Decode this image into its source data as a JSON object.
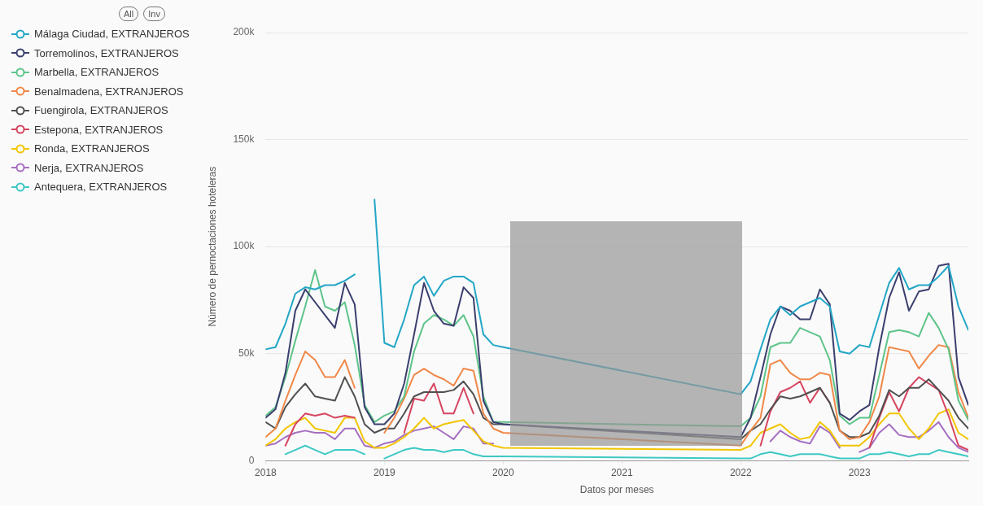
{
  "chart_data": {
    "type": "line",
    "xlabel": "Datos por meses",
    "ylabel": "Número de pernoctaciones hoteleras",
    "annotations": [
      "All",
      "Inv"
    ],
    "x": [
      "2018-01",
      "2018-02",
      "2018-03",
      "2018-04",
      "2018-05",
      "2018-06",
      "2018-07",
      "2018-08",
      "2018-09",
      "2018-10",
      "2018-11",
      "2018-12",
      "2019-01",
      "2019-02",
      "2019-03",
      "2019-04",
      "2019-05",
      "2019-06",
      "2019-07",
      "2019-08",
      "2019-09",
      "2019-10",
      "2019-11",
      "2019-12",
      "2020-01",
      "2022-01",
      "2022-02",
      "2022-03",
      "2022-04",
      "2022-05",
      "2022-06",
      "2022-07",
      "2022-08",
      "2022-09",
      "2022-10",
      "2022-11",
      "2022-12",
      "2023-01",
      "2023-02",
      "2023-03",
      "2023-04",
      "2023-05",
      "2023-06",
      "2023-07",
      "2023-08",
      "2023-09",
      "2023-10",
      "2023-11",
      "2023-12"
    ],
    "series": [
      {
        "name": "Málaga Ciudad, EXTRANJEROS",
        "color": "#23a6c6",
        "values": [
          52000,
          53000,
          64000,
          78000,
          81000,
          80000,
          82000,
          82000,
          84000,
          87000,
          null,
          122000,
          55000,
          53000,
          66000,
          82000,
          86000,
          77000,
          84000,
          86000,
          86000,
          83000,
          59000,
          54000,
          53000,
          31000,
          37000,
          52000,
          66000,
          72000,
          68000,
          72000,
          74000,
          76000,
          72000,
          51000,
          50000,
          54000,
          53000,
          68000,
          83000,
          90000,
          80000,
          82000,
          82000,
          86000,
          91000,
          72000,
          61000
        ]
      },
      {
        "name": "Torremolinos, EXTRANJEROS",
        "color": "#3b3f6e",
        "values": [
          20000,
          24000,
          41000,
          70000,
          80000,
          74000,
          68000,
          62000,
          83000,
          73000,
          25000,
          17000,
          17000,
          22000,
          36000,
          59000,
          83000,
          70000,
          64000,
          63000,
          81000,
          76000,
          28000,
          18000,
          17000,
          11000,
          20000,
          39000,
          59000,
          72000,
          70000,
          66000,
          66000,
          80000,
          73000,
          22000,
          19000,
          23000,
          26000,
          53000,
          76000,
          88000,
          70000,
          79000,
          80000,
          91000,
          92000,
          39000,
          26000
        ]
      },
      {
        "name": "Marbella, EXTRANJEROS",
        "color": "#5ec48a",
        "values": [
          21000,
          25000,
          39000,
          56000,
          72000,
          89000,
          72000,
          70000,
          74000,
          54000,
          26000,
          18000,
          21000,
          23000,
          30000,
          51000,
          64000,
          68000,
          66000,
          63000,
          68000,
          58000,
          30000,
          18000,
          18000,
          16000,
          20000,
          30000,
          53000,
          55000,
          55000,
          62000,
          60000,
          58000,
          47000,
          21000,
          17000,
          20000,
          20000,
          40000,
          60000,
          61000,
          60000,
          58000,
          69000,
          62000,
          52000,
          28000,
          19000
        ]
      },
      {
        "name": "Benalmadena, EXTRANJEROS",
        "color": "#f08848",
        "values": [
          11000,
          15000,
          28000,
          40000,
          51000,
          47000,
          39000,
          39000,
          47000,
          34000,
          null,
          null,
          13000,
          20000,
          29000,
          40000,
          43000,
          40000,
          38000,
          35000,
          43000,
          42000,
          22000,
          15000,
          13000,
          7000,
          14000,
          20000,
          45000,
          47000,
          41000,
          38000,
          38000,
          41000,
          40000,
          14000,
          10000,
          11000,
          18000,
          30000,
          53000,
          52000,
          51000,
          43000,
          49000,
          54000,
          53000,
          32000,
          20000
        ]
      },
      {
        "name": "Fuengirola, EXTRANJEROS",
        "color": "#505050",
        "values": [
          18000,
          15000,
          25000,
          31000,
          36000,
          30000,
          29000,
          28000,
          39000,
          30000,
          17000,
          13000,
          15000,
          15000,
          22000,
          30000,
          32000,
          32000,
          32000,
          33000,
          37000,
          31000,
          20000,
          17000,
          17000,
          10000,
          14000,
          17000,
          24000,
          30000,
          29000,
          30000,
          32000,
          34000,
          27000,
          14000,
          11000,
          11000,
          13000,
          21000,
          33000,
          30000,
          34000,
          34000,
          38000,
          33000,
          28000,
          20000,
          15000
        ]
      },
      {
        "name": "Estepona, EXTRANJEROS",
        "color": "#d6455f",
        "values": [
          null,
          null,
          7000,
          17000,
          22000,
          21000,
          22000,
          20000,
          21000,
          20000,
          null,
          null,
          null,
          null,
          13000,
          29000,
          28000,
          36000,
          22000,
          22000,
          34000,
          22000,
          null,
          null,
          null,
          null,
          null,
          7000,
          23000,
          32000,
          34000,
          37000,
          27000,
          34000,
          27000,
          null,
          null,
          null,
          6000,
          20000,
          32000,
          23000,
          34000,
          39000,
          36000,
          33000,
          21000,
          7000,
          5000
        ]
      },
      {
        "name": "Ronda, EXTRANJEROS",
        "color": "#f2c500",
        "values": [
          7000,
          10000,
          15000,
          18000,
          20000,
          15000,
          14000,
          13000,
          20000,
          20000,
          9000,
          6000,
          6000,
          8000,
          11000,
          15000,
          20000,
          15000,
          17000,
          18000,
          19000,
          14000,
          9000,
          7000,
          6000,
          5000,
          7000,
          13000,
          15000,
          17000,
          13000,
          10000,
          11000,
          18000,
          14000,
          7000,
          7000,
          7000,
          11000,
          17000,
          22000,
          22000,
          15000,
          10000,
          15000,
          22000,
          24000,
          13000,
          10000
        ]
      },
      {
        "name": "Nerja, EXTRANJEROS",
        "color": "#a66fc2",
        "values": [
          7000,
          8000,
          11000,
          13000,
          14000,
          13000,
          13000,
          10000,
          15000,
          15000,
          7000,
          6000,
          8000,
          9000,
          12000,
          14000,
          15000,
          16000,
          13000,
          10000,
          16000,
          15000,
          8000,
          8000,
          null,
          null,
          null,
          null,
          9000,
          14000,
          11000,
          9000,
          8000,
          16000,
          13000,
          6000,
          null,
          4000,
          6000,
          13000,
          17000,
          12000,
          11000,
          11000,
          14000,
          18000,
          11000,
          6000,
          4000
        ]
      },
      {
        "name": "Antequera, EXTRANJEROS",
        "color": "#3dc9c4",
        "values": [
          null,
          null,
          3000,
          5000,
          7000,
          5000,
          3000,
          5000,
          5000,
          5000,
          3000,
          null,
          1000,
          3000,
          5000,
          6000,
          5000,
          5000,
          4000,
          5000,
          5000,
          3000,
          2000,
          2000,
          2000,
          1000,
          1000,
          3000,
          4000,
          3000,
          2000,
          3000,
          3000,
          3000,
          2000,
          1000,
          1000,
          1000,
          3000,
          3000,
          4000,
          3000,
          2000,
          3000,
          3000,
          5000,
          4000,
          3000,
          2000
        ]
      }
    ],
    "xlim": [
      "2018-01",
      "2023-12"
    ],
    "xticks": [
      "2018",
      "2019",
      "2020",
      "2021",
      "2022",
      "2023"
    ],
    "ylim": [
      0,
      200000
    ],
    "yticks": [
      {
        "value": 0,
        "label": "0"
      },
      {
        "value": 50000,
        "label": "50k"
      },
      {
        "value": 100000,
        "label": "100k"
      },
      {
        "value": 150000,
        "label": "150k"
      },
      {
        "value": 200000,
        "label": "200k"
      }
    ],
    "grid": "y",
    "legend": "top left",
    "marker": "none",
    "line_style": "solid"
  }
}
